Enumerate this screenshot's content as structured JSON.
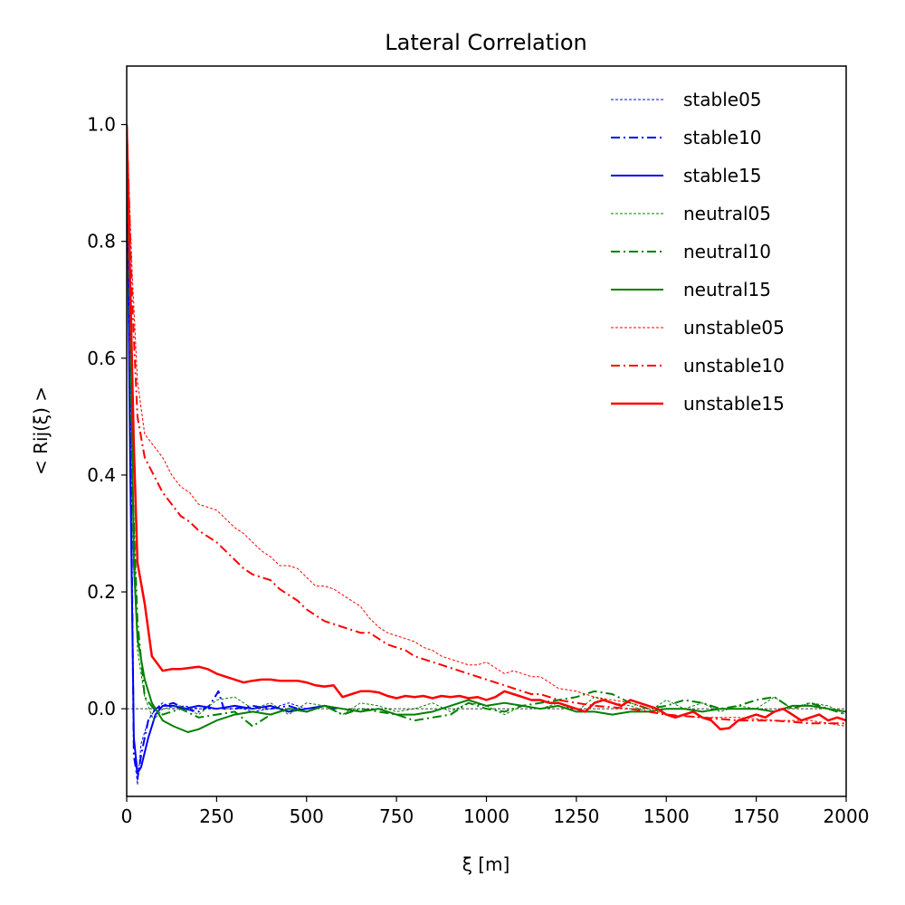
{
  "chart_data": {
    "type": "line",
    "title": "Lateral Correlation",
    "xlabel": "ξ [m]",
    "ylabel": "< Rij(ξ) >",
    "xlim": [
      0,
      2000
    ],
    "ylim": [
      -0.15,
      1.1
    ],
    "xticks": [
      0,
      250,
      500,
      750,
      1000,
      1250,
      1500,
      1750,
      2000
    ],
    "xtick_labels": [
      "0",
      "250",
      "500",
      "750",
      "1000",
      "1250",
      "1500",
      "1750",
      "2000"
    ],
    "yticks": [
      0.0,
      0.2,
      0.4,
      0.6,
      0.8,
      1.0
    ],
    "ytick_labels": [
      "0.0",
      "0.2",
      "0.4",
      "0.6",
      "0.8",
      "1.0"
    ],
    "grid": false,
    "legend_position": "top-right",
    "reference_line": {
      "y": 0.0,
      "style": "dashed",
      "color": "#000000"
    },
    "series": [
      {
        "name": "stable05",
        "color": "#0000ff",
        "style": "dotted",
        "width": "thin",
        "x": [
          0,
          10,
          20,
          30,
          40,
          60,
          80,
          100,
          130,
          160,
          200,
          250,
          300,
          350,
          400,
          450,
          500,
          550,
          600
        ],
        "y": [
          1.0,
          0.55,
          -0.05,
          -0.13,
          -0.06,
          -0.02,
          0.0,
          0.01,
          0.0,
          0.005,
          0.0,
          0.0,
          0.005,
          -0.005,
          0.0,
          0.01,
          0.0,
          0.005,
          0.0
        ]
      },
      {
        "name": "stable10",
        "color": "#0000ff",
        "style": "dashdot",
        "width": "medium",
        "x": [
          0,
          10,
          20,
          30,
          40,
          60,
          80,
          100,
          130,
          160,
          200,
          230,
          255,
          270,
          300,
          350,
          400,
          450,
          500,
          550,
          580
        ],
        "y": [
          1.0,
          0.5,
          -0.08,
          -0.12,
          -0.08,
          -0.02,
          0.0,
          0.005,
          0.01,
          0.0,
          -0.005,
          0.005,
          0.03,
          0.0,
          0.0,
          0.005,
          0.0,
          0.005,
          -0.005,
          0.005,
          0.0
        ]
      },
      {
        "name": "stable15",
        "color": "#0000ff",
        "style": "solid",
        "width": "medium",
        "x": [
          0,
          10,
          20,
          30,
          40,
          60,
          80,
          100,
          130,
          160,
          200,
          250,
          300,
          350,
          400,
          450,
          500,
          550,
          580
        ],
        "y": [
          1.0,
          0.4,
          -0.05,
          -0.11,
          -0.1,
          -0.05,
          -0.01,
          0.005,
          0.005,
          0.0,
          0.005,
          0.0,
          0.005,
          0.0,
          0.005,
          -0.005,
          0.0,
          0.005,
          0.0
        ]
      },
      {
        "name": "neutral05",
        "color": "#008000",
        "style": "dotted",
        "width": "thin",
        "x": [
          0,
          15,
          30,
          50,
          75,
          100,
          150,
          200,
          250,
          300,
          350,
          400,
          450,
          500,
          550,
          600,
          650,
          700,
          750,
          800,
          850,
          900,
          950,
          1000,
          1050,
          1100,
          1150,
          1200,
          1250,
          1300,
          1350,
          1400,
          1450,
          1500,
          1550,
          1600,
          1650,
          1700,
          1750,
          1800,
          1850,
          1900,
          1950,
          2000
        ],
        "y": [
          1.0,
          0.45,
          0.1,
          0.02,
          -0.02,
          0.0,
          0.005,
          -0.01,
          0.015,
          0.02,
          0.0,
          0.01,
          -0.01,
          0.01,
          0.005,
          -0.01,
          0.01,
          0.005,
          -0.005,
          0.0,
          0.01,
          -0.005,
          0.01,
          0.005,
          -0.01,
          0.005,
          0.0,
          0.01,
          -0.005,
          0.02,
          0.01,
          0.005,
          -0.005,
          0.015,
          0.0,
          0.01,
          -0.005,
          0.005,
          0.0,
          0.02,
          0.0,
          0.01,
          0.005,
          -0.01
        ]
      },
      {
        "name": "neutral10",
        "color": "#008000",
        "style": "dashdot",
        "width": "medium",
        "x": [
          0,
          15,
          30,
          50,
          75,
          100,
          150,
          200,
          250,
          300,
          350,
          400,
          450,
          500,
          550,
          600,
          650,
          700,
          750,
          800,
          850,
          900,
          950,
          1000,
          1050,
          1100,
          1150,
          1200,
          1250,
          1300,
          1350,
          1400,
          1450,
          1500,
          1550,
          1600,
          1650,
          1700,
          1750,
          1800,
          1850,
          1900,
          1950,
          2000
        ],
        "y": [
          1.0,
          0.4,
          0.15,
          0.02,
          0.0,
          -0.01,
          0.0,
          -0.015,
          -0.01,
          -0.005,
          -0.03,
          -0.01,
          0.0,
          -0.005,
          0.005,
          -0.01,
          0.0,
          -0.005,
          -0.01,
          -0.02,
          -0.015,
          -0.01,
          0.01,
          0.0,
          -0.005,
          0.005,
          0.01,
          0.015,
          0.02,
          0.03,
          0.025,
          0.01,
          0.0,
          0.005,
          0.015,
          0.01,
          0.0,
          0.005,
          0.015,
          0.02,
          0.0,
          0.01,
          0.0,
          -0.01
        ]
      },
      {
        "name": "neutral15",
        "color": "#008000",
        "style": "solid",
        "width": "medium",
        "x": [
          0,
          10,
          20,
          30,
          50,
          70,
          100,
          130,
          170,
          200,
          250,
          300,
          350,
          400,
          450,
          500,
          550,
          600,
          650,
          700,
          750,
          800,
          850,
          900,
          950,
          1000,
          1050,
          1100,
          1150,
          1200,
          1250,
          1300,
          1350,
          1400,
          1450,
          1500,
          1550,
          1600,
          1650,
          1700,
          1750,
          1800,
          1850,
          1900,
          1950,
          2000
        ],
        "y": [
          1.0,
          0.7,
          0.25,
          0.12,
          0.05,
          0.01,
          -0.02,
          -0.03,
          -0.04,
          -0.035,
          -0.02,
          -0.01,
          -0.005,
          -0.01,
          0.0,
          -0.005,
          0.005,
          0.0,
          -0.005,
          0.0,
          -0.01,
          -0.01,
          -0.005,
          0.005,
          0.015,
          0.005,
          0.01,
          0.005,
          0.0,
          0.005,
          -0.005,
          -0.005,
          -0.01,
          -0.005,
          -0.005,
          0.0,
          0.0,
          -0.005,
          0.0,
          0.0,
          0.0,
          -0.005,
          0.005,
          0.005,
          0.0,
          -0.005
        ]
      },
      {
        "name": "unstable05",
        "color": "#ff0000",
        "style": "dotted",
        "width": "thin",
        "x": [
          0,
          15,
          30,
          50,
          75,
          100,
          125,
          150,
          175,
          200,
          225,
          250,
          275,
          300,
          325,
          350,
          375,
          400,
          425,
          450,
          475,
          500,
          525,
          550,
          575,
          600,
          625,
          650,
          675,
          700,
          725,
          750,
          775,
          800,
          825,
          850,
          875,
          900,
          925,
          950,
          975,
          1000,
          1025,
          1050,
          1075,
          1100,
          1125,
          1150,
          1175,
          1200,
          1250,
          1300,
          1400,
          1500,
          1600,
          1700,
          1800,
          1900,
          2000
        ],
        "y": [
          1.0,
          0.75,
          0.56,
          0.47,
          0.45,
          0.43,
          0.4,
          0.38,
          0.37,
          0.35,
          0.345,
          0.34,
          0.325,
          0.31,
          0.3,
          0.285,
          0.27,
          0.26,
          0.245,
          0.245,
          0.24,
          0.225,
          0.21,
          0.21,
          0.205,
          0.195,
          0.185,
          0.175,
          0.155,
          0.14,
          0.13,
          0.125,
          0.12,
          0.115,
          0.105,
          0.1,
          0.09,
          0.085,
          0.08,
          0.075,
          0.075,
          0.08,
          0.07,
          0.06,
          0.065,
          0.06,
          0.055,
          0.055,
          0.045,
          0.035,
          0.03,
          0.02,
          0.01,
          -0.01,
          -0.015,
          -0.015,
          -0.02,
          -0.02,
          -0.03
        ]
      },
      {
        "name": "unstable10",
        "color": "#ff0000",
        "style": "dashdot",
        "width": "medium",
        "x": [
          0,
          15,
          30,
          50,
          75,
          100,
          125,
          150,
          175,
          200,
          225,
          250,
          275,
          300,
          325,
          350,
          375,
          400,
          425,
          450,
          475,
          500,
          525,
          550,
          575,
          600,
          625,
          650,
          675,
          700,
          725,
          750,
          775,
          800,
          825,
          850,
          875,
          900,
          925,
          950,
          975,
          1000,
          1025,
          1050,
          1075,
          1100,
          1125,
          1150,
          1175,
          1200,
          1250,
          1300,
          1400,
          1500,
          1600,
          1700,
          1800,
          1900,
          2000
        ],
        "y": [
          1.0,
          0.7,
          0.5,
          0.43,
          0.4,
          0.37,
          0.35,
          0.33,
          0.32,
          0.305,
          0.295,
          0.285,
          0.27,
          0.255,
          0.24,
          0.23,
          0.225,
          0.22,
          0.205,
          0.195,
          0.185,
          0.17,
          0.16,
          0.15,
          0.145,
          0.14,
          0.135,
          0.13,
          0.13,
          0.12,
          0.11,
          0.105,
          0.1,
          0.09,
          0.085,
          0.08,
          0.075,
          0.07,
          0.065,
          0.06,
          0.055,
          0.05,
          0.045,
          0.04,
          0.035,
          0.03,
          0.025,
          0.025,
          0.02,
          0.015,
          0.01,
          0.005,
          0.0,
          -0.01,
          -0.015,
          -0.02,
          -0.02,
          -0.025,
          -0.025
        ]
      },
      {
        "name": "unstable15",
        "color": "#ff0000",
        "style": "solid",
        "width": "thick",
        "x": [
          0,
          10,
          20,
          30,
          50,
          70,
          100,
          125,
          150,
          175,
          200,
          225,
          250,
          275,
          300,
          325,
          350,
          375,
          400,
          425,
          450,
          475,
          500,
          525,
          550,
          575,
          600,
          625,
          650,
          675,
          700,
          725,
          750,
          775,
          800,
          825,
          850,
          875,
          900,
          925,
          950,
          975,
          1000,
          1025,
          1050,
          1075,
          1100,
          1125,
          1150,
          1175,
          1200,
          1225,
          1250,
          1275,
          1300,
          1325,
          1350,
          1375,
          1400,
          1425,
          1450,
          1475,
          1500,
          1525,
          1550,
          1575,
          1600,
          1625,
          1650,
          1675,
          1700,
          1725,
          1750,
          1775,
          1800,
          1825,
          1850,
          1875,
          1900,
          1925,
          1950,
          1975,
          2000
        ],
        "y": [
          1.0,
          0.72,
          0.45,
          0.25,
          0.18,
          0.09,
          0.065,
          0.068,
          0.068,
          0.07,
          0.072,
          0.068,
          0.06,
          0.055,
          0.05,
          0.045,
          0.048,
          0.05,
          0.05,
          0.048,
          0.048,
          0.048,
          0.045,
          0.04,
          0.038,
          0.04,
          0.02,
          0.025,
          0.03,
          0.03,
          0.028,
          0.022,
          0.018,
          0.022,
          0.02,
          0.022,
          0.018,
          0.022,
          0.02,
          0.022,
          0.018,
          0.02,
          0.015,
          0.02,
          0.03,
          0.025,
          0.02,
          0.015,
          0.015,
          0.01,
          0.01,
          0.005,
          0.0,
          -0.005,
          0.01,
          0.015,
          0.01,
          0.005,
          0.015,
          0.01,
          0.005,
          0.0,
          -0.01,
          -0.015,
          -0.01,
          -0.005,
          -0.015,
          -0.02,
          -0.035,
          -0.033,
          -0.02,
          -0.015,
          -0.01,
          -0.015,
          -0.005,
          0.0,
          -0.01,
          -0.02,
          -0.015,
          -0.01,
          -0.02,
          -0.015,
          -0.02
        ]
      }
    ]
  }
}
